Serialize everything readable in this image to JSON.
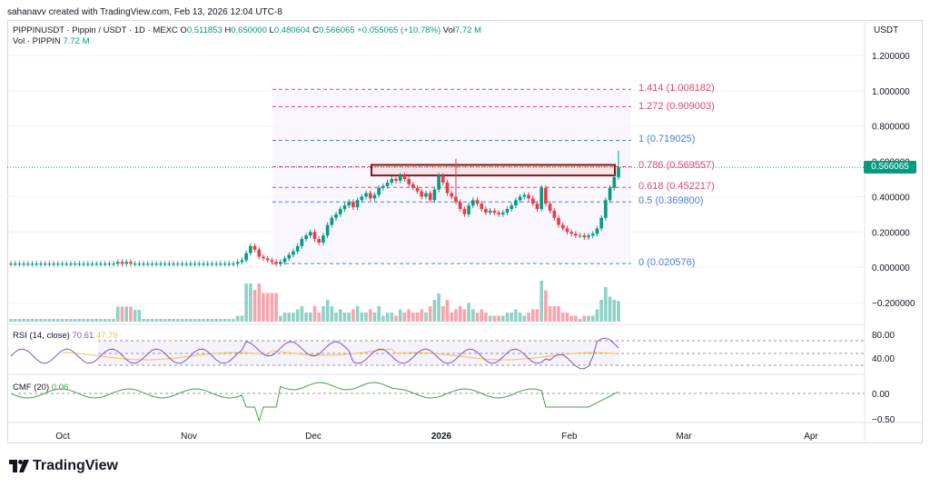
{
  "header": {
    "attribution": "sahanavv created with TradingView.com, Feb 13, 2026 12:04 UTC-8"
  },
  "legend": {
    "symbol": "PIPPINUSDT · Pippin / USDT · 1D · MEXC",
    "o_label": "O",
    "o_value": "0.511853",
    "h_label": "H",
    "h_value": "0.650000",
    "l_label": "L",
    "l_value": "0.480604",
    "c_label": "C",
    "c_value": "0.566065",
    "change": "+0.055065 (+10.78%)",
    "vol_label": "Vol",
    "vol_value": "7.72 M",
    "vol_row_label": "Vol · PIPPIN",
    "vol_row_value": "7.72 M"
  },
  "price_axis": {
    "currency": "USDT",
    "current_price": "0.566065",
    "ticks": [
      "1.200000",
      "1.000000",
      "0.800000",
      "0.600000",
      "0.400000",
      "0.200000",
      "0.000000",
      "−0.200000"
    ]
  },
  "fib_levels": [
    {
      "label": "1.414 (1.008182)",
      "value": 1.008182,
      "color": "#e04a6e"
    },
    {
      "label": "1.272 (0.909003)",
      "value": 0.909003,
      "color": "#e04a6e"
    },
    {
      "label": "1 (0.719025)",
      "value": 0.719025,
      "color": "#4a7fd4"
    },
    {
      "label": "0.786 (0.569557)",
      "value": 0.569557,
      "color": "#e04a6e"
    },
    {
      "label": "0.618 (0.452217)",
      "value": 0.452217,
      "color": "#e04a6e"
    },
    {
      "label": "0.5 (0.369800)",
      "value": 0.3698,
      "color": "#4a7fd4"
    },
    {
      "label": "0 (0.020576)",
      "value": 0.020576,
      "color": "#4a7fd4"
    }
  ],
  "rsi": {
    "title": "RSI (14, close)",
    "value": "70.61",
    "ma": "47.79",
    "ticks": [
      "80.00",
      "40.00"
    ]
  },
  "cmf": {
    "title": "CMF (20)",
    "value": "0.06",
    "ticks": [
      "0.00",
      "−0.50"
    ]
  },
  "time_axis": {
    "labels": [
      "Oct",
      "Nov",
      "Dec",
      "2026",
      "Jan",
      "Feb",
      "Mar",
      "Apr"
    ]
  },
  "brand": {
    "name": "TradingView"
  },
  "colors": {
    "up": "#089981",
    "down": "#f23645",
    "rsi": "#7e57c2",
    "rsi_ma": "#f7c14a",
    "cmf": "#43a047"
  },
  "chart_data": {
    "type": "candlestick",
    "symbol": "PIPPINUSDT",
    "close_series": [
      0.02,
      0.02,
      0.02,
      0.02,
      0.02,
      0.02,
      0.02,
      0.02,
      0.02,
      0.02,
      0.02,
      0.02,
      0.02,
      0.02,
      0.02,
      0.02,
      0.02,
      0.02,
      0.02,
      0.02,
      0.02,
      0.02,
      0.02,
      0.02,
      0.02,
      0.03,
      0.02,
      0.03,
      0.02,
      0.02,
      0.02,
      0.02,
      0.02,
      0.02,
      0.02,
      0.02,
      0.02,
      0.02,
      0.02,
      0.02,
      0.02,
      0.02,
      0.02,
      0.02,
      0.02,
      0.02,
      0.02,
      0.02,
      0.02,
      0.02,
      0.02,
      0.02,
      0.02,
      0.03,
      0.04,
      0.08,
      0.12,
      0.1,
      0.06,
      0.05,
      0.04,
      0.03,
      0.02,
      0.03,
      0.05,
      0.07,
      0.09,
      0.12,
      0.16,
      0.18,
      0.2,
      0.16,
      0.14,
      0.18,
      0.24,
      0.28,
      0.3,
      0.33,
      0.35,
      0.37,
      0.34,
      0.38,
      0.4,
      0.42,
      0.39,
      0.41,
      0.45,
      0.46,
      0.48,
      0.5,
      0.49,
      0.52,
      0.5,
      0.47,
      0.45,
      0.43,
      0.4,
      0.42,
      0.38,
      0.44,
      0.52,
      0.48,
      0.42,
      0.4,
      0.37,
      0.33,
      0.3,
      0.35,
      0.38,
      0.36,
      0.33,
      0.31,
      0.32,
      0.31,
      0.3,
      0.31,
      0.33,
      0.35,
      0.38,
      0.4,
      0.41,
      0.39,
      0.36,
      0.33,
      0.45,
      0.36,
      0.32,
      0.28,
      0.24,
      0.22,
      0.2,
      0.19,
      0.18,
      0.18,
      0.17,
      0.18,
      0.19,
      0.22,
      0.28,
      0.38,
      0.45,
      0.51,
      0.566
    ]
  }
}
